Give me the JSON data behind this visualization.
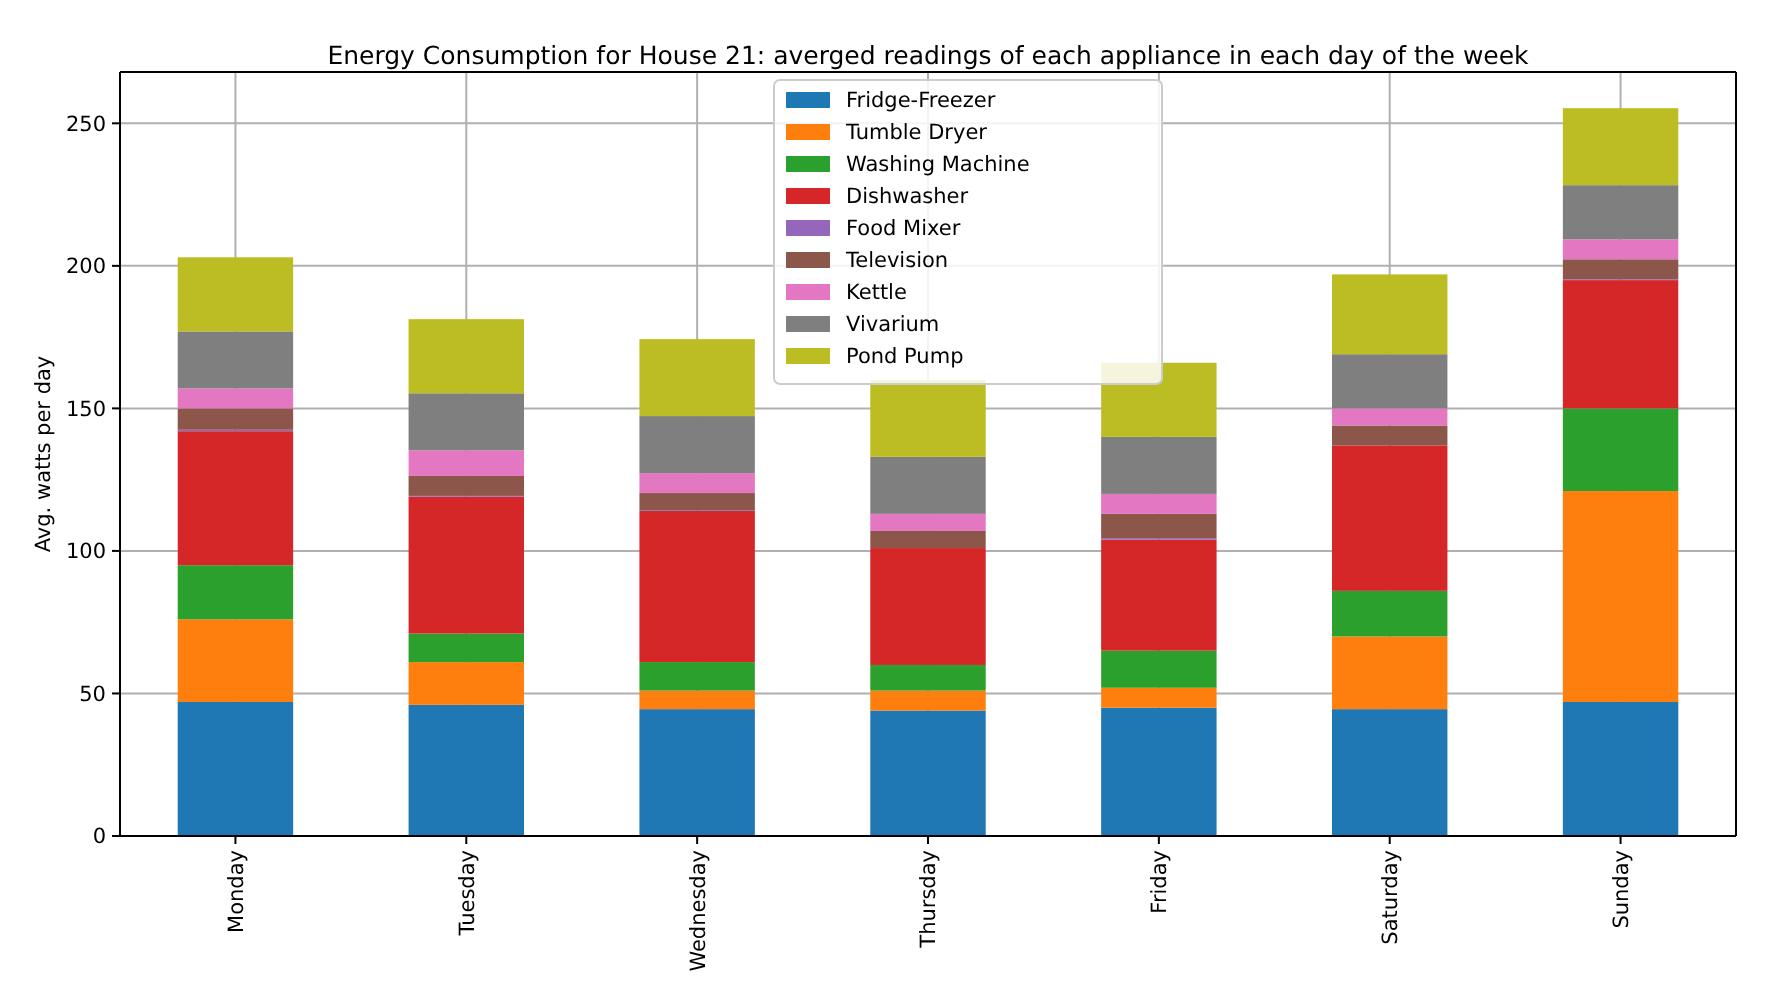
{
  "chart_data": {
    "type": "bar",
    "stacked": true,
    "title": "Energy Consumption for House 21: averged readings of each appliance in each day of the week",
    "ylabel": "Avg. watts per day",
    "categories": [
      "Monday",
      "Tuesday",
      "Wednesday",
      "Thursday",
      "Friday",
      "Saturday",
      "Sunday"
    ],
    "series": [
      {
        "name": "Fridge-Freezer",
        "color": "#1f77b4",
        "values": [
          47,
          46,
          44.5,
          44,
          45,
          44.5,
          47
        ]
      },
      {
        "name": "Tumble Dryer",
        "color": "#ff7f0e",
        "values": [
          29,
          15,
          6.5,
          7,
          7,
          25.5,
          74
        ]
      },
      {
        "name": "Washing Machine",
        "color": "#2ca02c",
        "values": [
          19,
          10,
          10,
          9,
          13,
          16,
          29
        ]
      },
      {
        "name": "Dishwasher",
        "color": "#d62728",
        "values": [
          47,
          48,
          53,
          41,
          39,
          51,
          45
        ]
      },
      {
        "name": "Food Mixer",
        "color": "#9467bd",
        "values": [
          0.5,
          0.3,
          0.3,
          null,
          0.5,
          null,
          0.3
        ]
      },
      {
        "name": "Television",
        "color": "#8c564b",
        "values": [
          7.5,
          7,
          6,
          6,
          8.5,
          7,
          7
        ]
      },
      {
        "name": "Kettle",
        "color": "#e377c2",
        "values": [
          7,
          9,
          7,
          6,
          7,
          6,
          7
        ]
      },
      {
        "name": "Vivarium",
        "color": "#7f7f7f",
        "values": [
          20,
          20,
          20,
          20,
          20,
          19,
          19
        ]
      },
      {
        "name": "Pond Pump",
        "color": "#bcbd22",
        "values": [
          26,
          26,
          27,
          27,
          26,
          28,
          27
        ]
      }
    ],
    "ylim": [
      0,
      268
    ],
    "yticks": [
      0,
      50,
      100,
      150,
      200,
      250
    ],
    "grid": true,
    "legend": "top"
  }
}
